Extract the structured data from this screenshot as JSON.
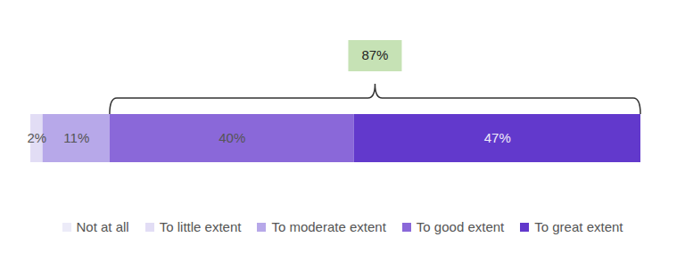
{
  "chart_data": {
    "type": "bar",
    "orientation": "horizontal",
    "stacked": true,
    "data_labels": true,
    "tick_labels": false,
    "legend": "bottom",
    "xlim": [
      0,
      100
    ],
    "series": [
      {
        "name": "Not at all",
        "color": "#ecebf8",
        "values": [
          0
        ],
        "value_labels": [
          null
        ]
      },
      {
        "name": "To little extent",
        "color": "#e2ddf5",
        "values": [
          2
        ],
        "value_labels": [
          "2%"
        ]
      },
      {
        "name": "To moderate extent",
        "color": "#b7a8e9",
        "values": [
          11
        ],
        "value_labels": [
          "11%"
        ]
      },
      {
        "name": "To good extent",
        "color": "#8a68d9",
        "values": [
          40
        ],
        "value_labels": [
          "40%"
        ]
      },
      {
        "name": "To great extent",
        "color": "#6239cc",
        "values": [
          47
        ],
        "value_labels": [
          "47%"
        ]
      }
    ],
    "annotations": [
      {
        "text": "87%",
        "value": 87,
        "series": [
          "To good extent",
          "To great extent"
        ]
      }
    ]
  }
}
